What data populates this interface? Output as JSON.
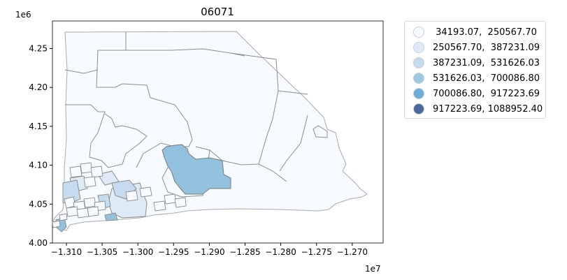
{
  "chart_data": {
    "type": "choropleth",
    "title": "06071",
    "x_offset_label": "1e7",
    "y_offset_label": "1e6",
    "x_ticks": [
      "−1.310",
      "−1.305",
      "−1.300",
      "−1.295",
      "−1.290",
      "−1.285",
      "−1.280",
      "−1.275",
      "−1.270"
    ],
    "y_ticks": [
      "4.00",
      "4.05",
      "4.10",
      "4.15",
      "4.20",
      "4.25"
    ],
    "legend_placement": "outside-right",
    "legend": [
      {
        "label": " 34193.07,  250567.70",
        "color": "#f7fbff"
      },
      {
        "label": "250567.70,  387231.09",
        "color": "#deebf7"
      },
      {
        "label": "387231.09,  531626.03",
        "color": "#c6dbef"
      },
      {
        "label": "531626.03,  700086.80",
        "color": "#9ecae1"
      },
      {
        "label": "700086.80,  917223.69",
        "color": "#6baed6"
      },
      {
        "label": "917223.69, 1088952.40",
        "color": "#4a6a9a"
      }
    ],
    "grid": false
  }
}
